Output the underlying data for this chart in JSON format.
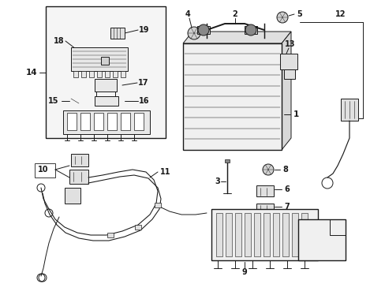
{
  "background_color": "#ffffff",
  "line_color": "#1a1a1a",
  "fig_width": 4.89,
  "fig_height": 3.6,
  "dpi": 100,
  "lw": 0.7,
  "fontsize": 6.5
}
